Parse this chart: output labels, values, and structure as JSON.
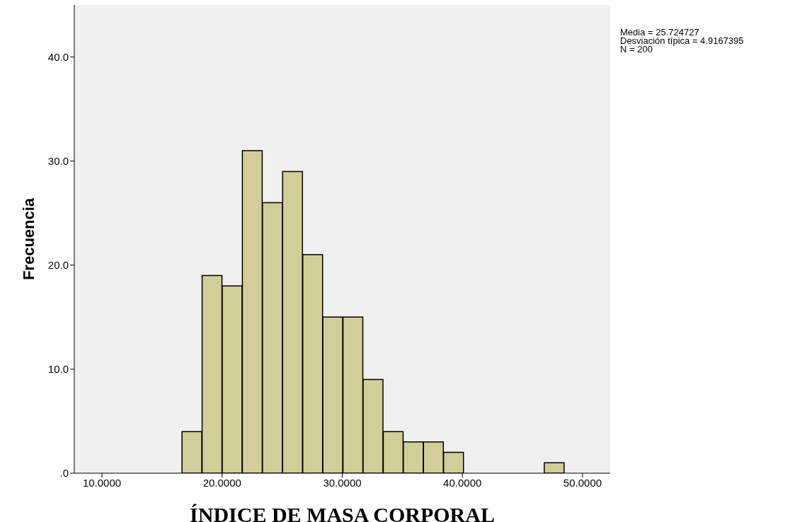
{
  "chart_data": {
    "type": "histogram",
    "xlabel": "ÍNDICE  DE MASA  CORPORAL",
    "ylabel": "Frecuencia",
    "bins": [
      16.66,
      18.34,
      20.01,
      21.69,
      23.36,
      25.04,
      26.71,
      28.39,
      30.06,
      31.74,
      33.41,
      35.09,
      36.76,
      38.44,
      40.11,
      41.79,
      43.46,
      45.14,
      46.81,
      48.49
    ],
    "values": [
      4,
      19,
      18,
      31,
      26,
      29,
      21,
      15,
      15,
      9,
      4,
      3,
      3,
      2,
      0,
      0,
      0,
      0,
      1
    ],
    "color": "#d3ce99",
    "xlim": [
      7.7,
      52.3
    ],
    "xticks": [
      {
        "value": 10,
        "label": "10.0000"
      },
      {
        "value": 20,
        "label": "20.0000"
      },
      {
        "value": 30,
        "label": "30.0000"
      },
      {
        "value": 40,
        "label": "40.0000"
      },
      {
        "value": 50,
        "label": "50.0000"
      }
    ],
    "ylim": [
      0,
      45
    ],
    "yticks": [
      {
        "value": 0,
        "label": ".0"
      },
      {
        "value": 10,
        "label": "10.0"
      },
      {
        "value": 20,
        "label": "20.0"
      },
      {
        "value": 30,
        "label": "30.0"
      },
      {
        "value": 40,
        "label": "40.0"
      }
    ],
    "annotations": [
      "Media = 25.724727",
      "Desviación típica = 4.9167395",
      "N = 200"
    ]
  }
}
